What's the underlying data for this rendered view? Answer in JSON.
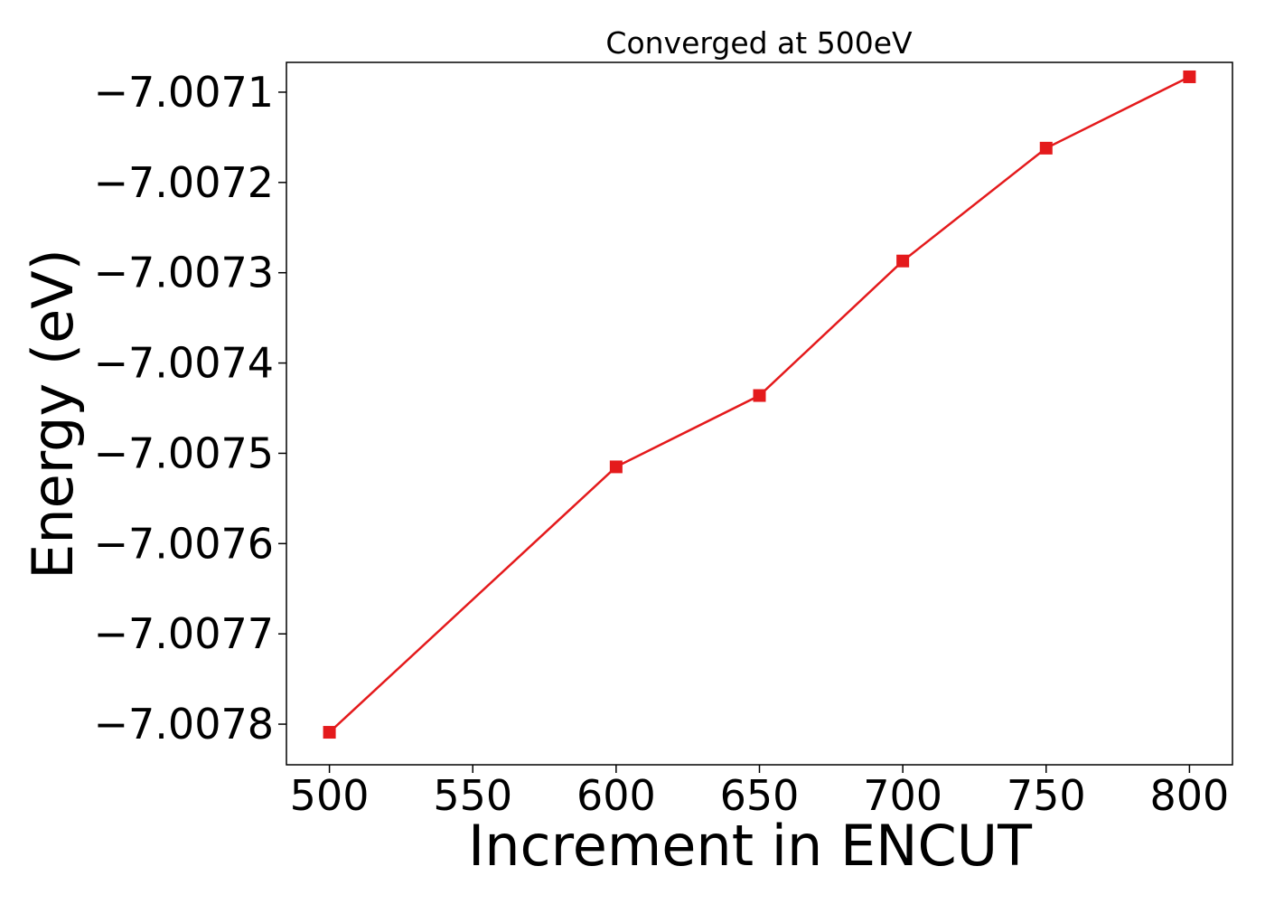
{
  "chart_data": {
    "type": "line",
    "title": "Converged at 500eV",
    "xlabel": "Increment in ENCUT",
    "ylabel": "Energy (eV)",
    "x": [
      500,
      600,
      650,
      700,
      750,
      800
    ],
    "series": [
      {
        "values": [
          -7.007809,
          -7.007515,
          -7.007436,
          -7.007287,
          -7.007162,
          -7.007083
        ],
        "color": "#e41a1c",
        "marker": "square"
      }
    ],
    "xlim": [
      485,
      815
    ],
    "ylim": [
      -7.007845,
      -7.007067
    ],
    "xticks": [
      500,
      550,
      600,
      650,
      700,
      750,
      800
    ],
    "xtick_labels": [
      "500",
      "550",
      "600",
      "650",
      "700",
      "750",
      "800"
    ],
    "yticks": [
      -7.0078,
      -7.0077,
      -7.0076,
      -7.0075,
      -7.0074,
      -7.0073,
      -7.0072,
      -7.0071
    ],
    "ytick_labels": [
      "−7.0078",
      "−7.0077",
      "−7.0076",
      "−7.0075",
      "−7.0074",
      "−7.0073",
      "−7.0072",
      "−7.0071"
    ],
    "grid": false,
    "legend": "none"
  }
}
